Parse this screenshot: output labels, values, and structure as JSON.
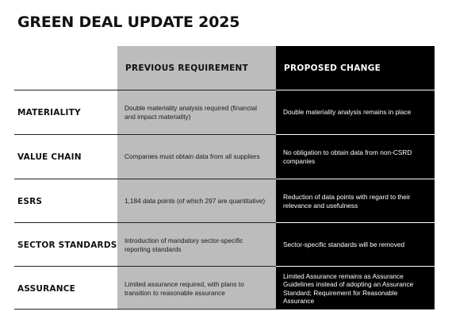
{
  "title": "GREEN DEAL UPDATE 2025",
  "headers": {
    "previous": "PREVIOUS REQUIREMENT",
    "proposed": "PROPOSED CHANGE"
  },
  "colors": {
    "previous_column": "#bcbcbc",
    "proposed_column": "#000000"
  },
  "rows": [
    {
      "label": "MATERIALITY",
      "previous": "Double materiality analysis required (financial and impact materiality)",
      "proposed": "Double materiality analysis remains in place"
    },
    {
      "label": "VALUE CHAIN",
      "previous": "Companies must obtain data from all suppliers",
      "proposed": "No obligation to obtain data from non-CSRD companies"
    },
    {
      "label": "ESRS",
      "previous": "1,184 data points (of which 297 are quantitative)",
      "proposed": "Reduction of data points with regard to their relevance and usefulness"
    },
    {
      "label": "SECTOR STANDARDS",
      "previous": "Introduction of mandatory sector-specific reporting standards",
      "proposed": "Sector-specific standards will be removed"
    },
    {
      "label": "ASSURANCE",
      "previous": "Limited assurance required, with plans to transition to reasonable assurance",
      "proposed": "Limited Assurance remains as Assurance Guidelines instead of adopting an Assurance Standard; Requirement for Reasonable Assurance"
    }
  ]
}
